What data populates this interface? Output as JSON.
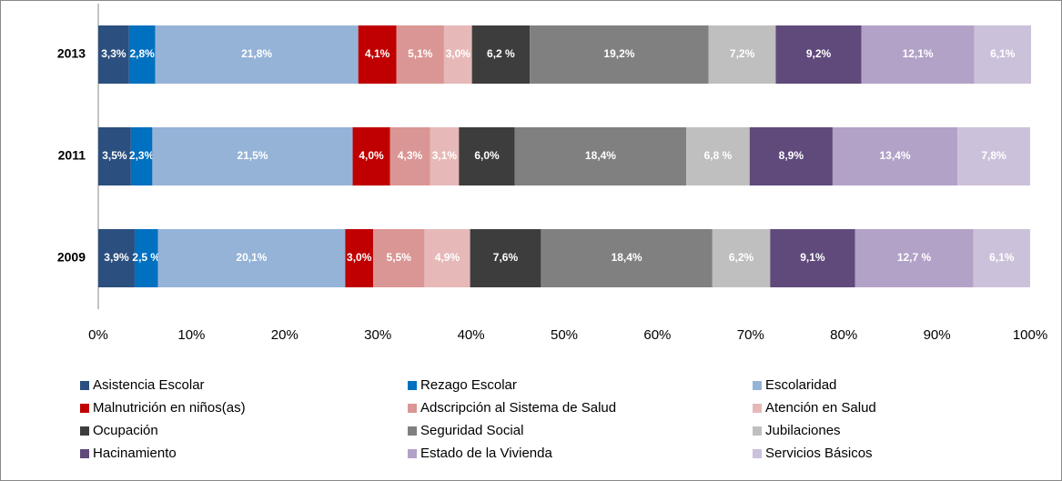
{
  "chart_data": {
    "type": "stacked-bar-horizontal",
    "categories": [
      "2013",
      "2011",
      "2009"
    ],
    "xlim": [
      0,
      100
    ],
    "xticks": [
      {
        "value": 0,
        "label": "0%"
      },
      {
        "value": 10,
        "label": "10%"
      },
      {
        "value": 20,
        "label": "20%"
      },
      {
        "value": 30,
        "label": "30%"
      },
      {
        "value": 40,
        "label": "40%"
      },
      {
        "value": 50,
        "label": "50%"
      },
      {
        "value": 60,
        "label": "60%"
      },
      {
        "value": 70,
        "label": "70%"
      },
      {
        "value": 80,
        "label": "80%"
      },
      {
        "value": 90,
        "label": "90%"
      },
      {
        "value": 100,
        "label": "100%"
      }
    ],
    "legend": "bottom",
    "series": [
      {
        "name": "Asistencia Escolar",
        "color": "#2b4f7e",
        "values": [
          3.3,
          3.5,
          3.9
        ],
        "value_labels": [
          "3,3%",
          "3,5%",
          "3,9%"
        ]
      },
      {
        "name": "Rezago Escolar",
        "color": "#0070c0",
        "values": [
          2.8,
          2.3,
          2.5
        ],
        "value_labels": [
          "2,8%",
          "2,3%",
          "2,5 %"
        ]
      },
      {
        "name": "Escolaridad",
        "color": "#95b3d7",
        "values": [
          21.8,
          21.5,
          20.1
        ],
        "value_labels": [
          "21,8%",
          "21,5%",
          "20,1%"
        ]
      },
      {
        "name": "Malnutrición  en niños(as)",
        "color": "#c00000",
        "values": [
          4.1,
          4.0,
          3.0
        ],
        "value_labels": [
          "4,1%",
          "4,0%",
          "3,0%"
        ]
      },
      {
        "name": "Adscripción al Sistema de Salud",
        "color": "#da9694",
        "values": [
          5.1,
          4.3,
          5.5
        ],
        "value_labels": [
          "5,1%",
          "4,3%",
          "5,5%"
        ]
      },
      {
        "name": "Atención en Salud",
        "color": "#e6b9b8",
        "values": [
          3.0,
          3.1,
          4.9
        ],
        "value_labels": [
          "3,0%",
          "3,1%",
          "4,9%"
        ]
      },
      {
        "name": "Ocupación",
        "color": "#3d3d3d",
        "values": [
          6.2,
          6.0,
          7.6
        ],
        "value_labels": [
          "6,2 %",
          "6,0%",
          "7,6%"
        ]
      },
      {
        "name": "Seguridad Social",
        "color": "#808080",
        "values": [
          19.2,
          18.4,
          18.4
        ],
        "value_labels": [
          "19,2%",
          "18,4%",
          "18,4%"
        ]
      },
      {
        "name": "Jubilaciones",
        "color": "#bfbfbf",
        "values": [
          7.2,
          6.8,
          6.2
        ],
        "value_labels": [
          "7,2%",
          "6,8 %",
          "6,2%"
        ]
      },
      {
        "name": "Hacinamiento",
        "color": "#604a7b",
        "values": [
          9.2,
          8.9,
          9.1
        ],
        "value_labels": [
          "9,2%",
          "8,9%",
          "9,1%"
        ]
      },
      {
        "name": "Estado de la Vivienda",
        "color": "#b3a2c7",
        "values": [
          12.1,
          13.4,
          12.7
        ],
        "value_labels": [
          "12,1%",
          "13,4%",
          "12,7 %"
        ]
      },
      {
        "name": "Servicios Básicos",
        "color": "#ccc1da",
        "values": [
          6.1,
          7.8,
          6.1
        ],
        "value_labels": [
          "6,1%",
          "7,8%",
          "6,1%"
        ]
      }
    ]
  }
}
